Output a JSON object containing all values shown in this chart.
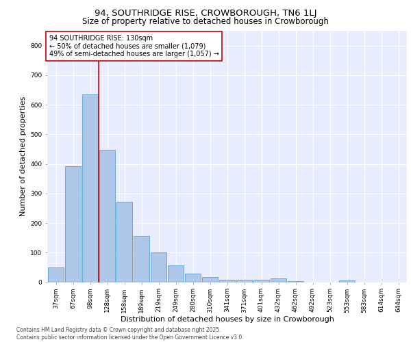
{
  "title_line1": "94, SOUTHRIDGE RISE, CROWBOROUGH, TN6 1LJ",
  "title_line2": "Size of property relative to detached houses in Crowborough",
  "xlabel": "Distribution of detached houses by size in Crowborough",
  "ylabel": "Number of detached properties",
  "bar_labels": [
    "37sqm",
    "67sqm",
    "98sqm",
    "128sqm",
    "158sqm",
    "189sqm",
    "219sqm",
    "249sqm",
    "280sqm",
    "310sqm",
    "341sqm",
    "371sqm",
    "401sqm",
    "432sqm",
    "462sqm",
    "492sqm",
    "523sqm",
    "553sqm",
    "583sqm",
    "614sqm",
    "644sqm"
  ],
  "bar_values": [
    50,
    393,
    635,
    447,
    272,
    156,
    100,
    57,
    30,
    18,
    8,
    7,
    7,
    13,
    3,
    0,
    0,
    5,
    0,
    0,
    0
  ],
  "bar_color": "#aec6e8",
  "bar_edgecolor": "#5a9fd4",
  "vline_color": "#cc0000",
  "annotation_text": "94 SOUTHRIDGE RISE: 130sqm\n← 50% of detached houses are smaller (1,079)\n49% of semi-detached houses are larger (1,057) →",
  "annotation_box_facecolor": "#ffffff",
  "annotation_box_edgecolor": "#cc0000",
  "ylim": [
    0,
    850
  ],
  "yticks": [
    0,
    100,
    200,
    300,
    400,
    500,
    600,
    700,
    800
  ],
  "background_color": "#e8eeff",
  "grid_color": "#ffffff",
  "footer_text": "Contains HM Land Registry data © Crown copyright and database right 2025.\nContains public sector information licensed under the Open Government Licence v3.0.",
  "title_fontsize": 9.5,
  "subtitle_fontsize": 8.5,
  "tick_fontsize": 6.5,
  "ylabel_fontsize": 8,
  "xlabel_fontsize": 8,
  "annotation_fontsize": 7,
  "footer_fontsize": 5.5
}
